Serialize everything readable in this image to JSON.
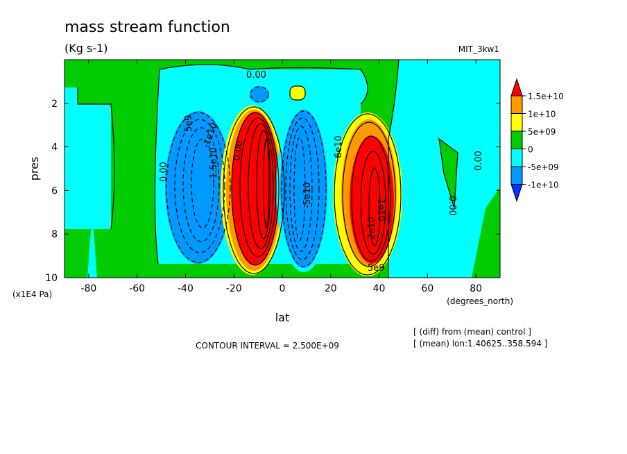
{
  "chart_data": {
    "type": "heatmap",
    "title": "mass stream function",
    "units": "(Kg s-1)",
    "run_label": "MIT_3kw1",
    "xlabel": "lat",
    "ylabel": "pres",
    "x_units": "(degrees_north)",
    "y_units": "(x1E4 Pa)",
    "xlim": [
      -90,
      90
    ],
    "ylim": [
      0,
      10
    ],
    "y_inverted": true,
    "x_ticks": [
      "-80",
      "-60",
      "-40",
      "-20",
      "0",
      "20",
      "40",
      "60",
      "80"
    ],
    "x_tick_values": [
      -80,
      -60,
      -40,
      -20,
      0,
      20,
      40,
      60,
      80
    ],
    "y_ticks": [
      "2",
      "4",
      "6",
      "8",
      "10"
    ],
    "y_tick_values": [
      2,
      4,
      6,
      8,
      10
    ],
    "contour_interval_text": "CONTOUR INTERVAL = 2.500E+09",
    "notes": [
      "[ (diff) from (mean) control ]",
      "[ (mean) lon:1.40625..358.594 ]"
    ],
    "colorbar": {
      "labels": [
        "1.5e+10",
        "1e+10",
        "5e+09",
        "0",
        "-5e+09",
        "-1e+10"
      ],
      "colors": [
        "#ff0000",
        "#ff9900",
        "#ffff00",
        "#00cc00",
        "#00ffff",
        "#0099ff",
        "#0033ff"
      ]
    },
    "cells": [
      {
        "name": "southern-outer-cell",
        "sign": "negative",
        "lat_range": [
          -45,
          -22
        ],
        "pres_range": [
          2,
          9.5
        ]
      },
      {
        "name": "southern-inner-cell",
        "sign": "positive",
        "lat_range": [
          -25,
          -1
        ],
        "pres_range": [
          2.2,
          9.8
        ]
      },
      {
        "name": "northern-inner-cell",
        "sign": "negative",
        "lat_range": [
          1,
          25
        ],
        "pres_range": [
          2.2,
          9.6
        ]
      },
      {
        "name": "northern-outer-cell",
        "sign": "positive",
        "lat_range": [
          20,
          48
        ],
        "pres_range": [
          2.5,
          9.6
        ]
      }
    ],
    "contour_labels": [
      "0.00",
      "0.00",
      "0.00",
      "0.00",
      "5e9",
      "-1e10",
      "-1.5e10",
      "0.00",
      "-5e10",
      "6e10",
      "1e10",
      "2e10",
      "5e9"
    ]
  }
}
